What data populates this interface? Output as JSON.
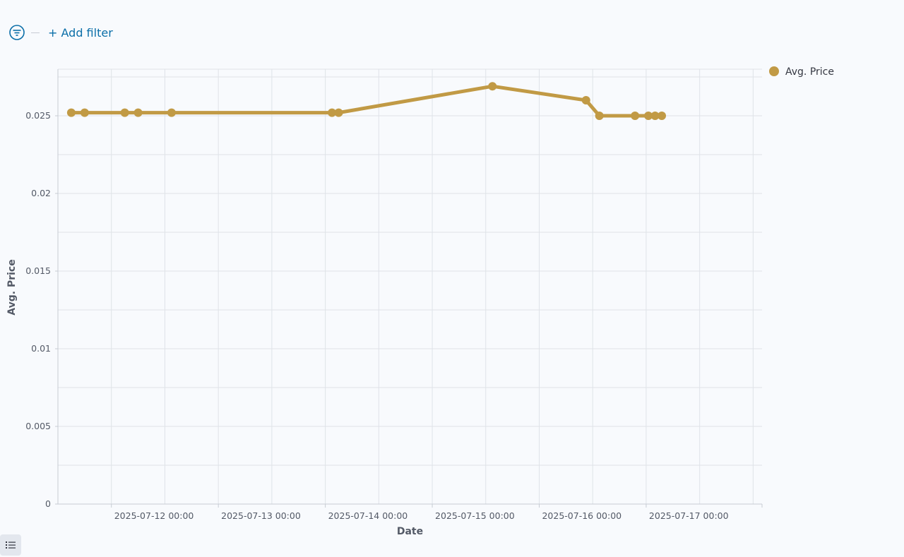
{
  "filter_bar": {
    "add_filter_label": "+ Add filter",
    "icon": "filter-icon"
  },
  "legend_toggle": {
    "icon": "list-icon"
  },
  "colors": {
    "series": "#c19a45",
    "accent": "#0a6ea8",
    "grid": "#dfe3e8"
  },
  "chart_data": {
    "type": "line",
    "xlabel": "Date",
    "ylabel": "Avg. Price",
    "x_tick_labels": [
      "2025-07-12 00:00",
      "2025-07-13 00:00",
      "2025-07-14 00:00",
      "2025-07-15 00:00",
      "2025-07-16 00:00",
      "2025-07-17 00:00"
    ],
    "y_tick_labels": [
      "0",
      "0.005",
      "0.01",
      "0.015",
      "0.02",
      "0.025"
    ],
    "y_ticks": [
      0,
      0.005,
      0.01,
      0.015,
      0.02,
      0.025
    ],
    "ylim": [
      0,
      0.028
    ],
    "xlim": [
      "2025-07-11 12:00",
      "2025-07-18 02:00"
    ],
    "grid": true,
    "legend_position": "top-right",
    "series": [
      {
        "name": "Avg. Price",
        "x": [
          "2025-07-11 15:00",
          "2025-07-11 18:00",
          "2025-07-12 03:00",
          "2025-07-12 06:00",
          "2025-07-12 13:30",
          "2025-07-14 01:30",
          "2025-07-14 03:00",
          "2025-07-15 13:30",
          "2025-07-16 10:30",
          "2025-07-16 13:30",
          "2025-07-16 21:30",
          "2025-07-17 00:30",
          "2025-07-17 02:00",
          "2025-07-17 03:30"
        ],
        "y": [
          0.0252,
          0.0252,
          0.0252,
          0.0252,
          0.0252,
          0.0252,
          0.0252,
          0.0269,
          0.026,
          0.025,
          0.025,
          0.025,
          0.025,
          0.025
        ]
      }
    ]
  }
}
